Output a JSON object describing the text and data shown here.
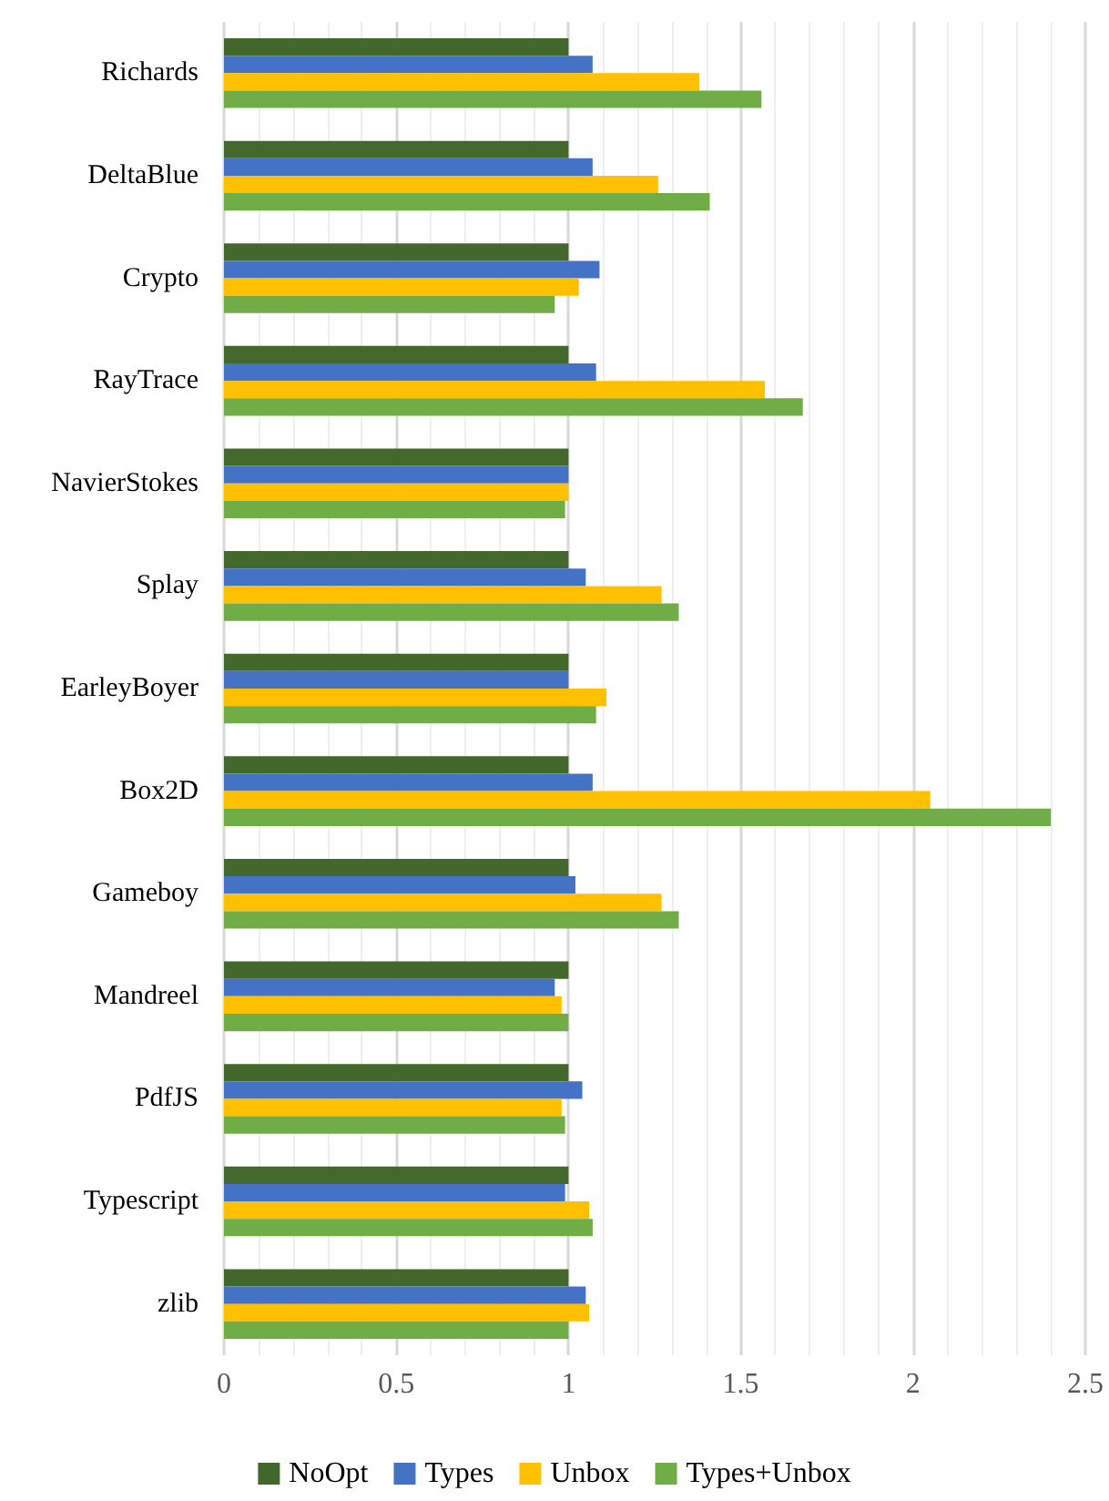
{
  "chart_data": {
    "type": "bar",
    "orientation": "horizontal",
    "categories": [
      "Richards",
      "DeltaBlue",
      "Crypto",
      "RayTrace",
      "NavierStokes",
      "Splay",
      "EarleyBoyer",
      "Box2D",
      "Gameboy",
      "Mandreel",
      "PdfJS",
      "Typescript",
      "zlib"
    ],
    "series": [
      {
        "name": "NoOpt",
        "color": "#43682b",
        "values": [
          1,
          1,
          1,
          1,
          1,
          1,
          1,
          1,
          1,
          1,
          1,
          1,
          1
        ]
      },
      {
        "name": "Types",
        "color": "#4472c4",
        "values": [
          1.07,
          1.07,
          1.09,
          1.08,
          1.0,
          1.05,
          1.0,
          1.07,
          1.02,
          0.96,
          1.04,
          0.99,
          1.05
        ]
      },
      {
        "name": "Unbox",
        "color": "#ffc000",
        "values": [
          1.38,
          1.26,
          1.03,
          1.57,
          1.0,
          1.27,
          1.11,
          2.05,
          1.27,
          0.98,
          0.98,
          1.06,
          1.06
        ]
      },
      {
        "name": "Types+Unbox",
        "color": "#70ad47",
        "values": [
          1.56,
          1.41,
          0.96,
          1.68,
          0.99,
          1.32,
          1.08,
          2.4,
          1.32,
          1.0,
          0.99,
          1.07,
          1.0
        ]
      }
    ],
    "xlim": [
      0,
      2.5
    ],
    "xticks": [
      0,
      0.5,
      1,
      1.5,
      2,
      2.5
    ],
    "grid": "x",
    "legend": "bottom"
  }
}
